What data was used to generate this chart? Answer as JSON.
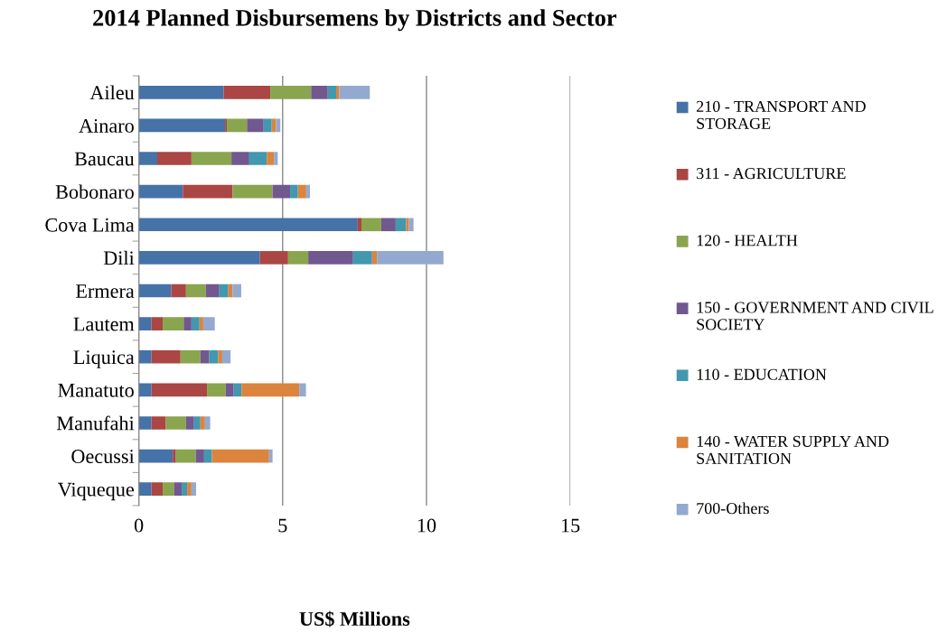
{
  "chart_data": {
    "type": "bar",
    "orientation": "horizontal",
    "stacked": true,
    "title": "2014 Planned Disbursemens by Districts and Sector",
    "xlabel": "US$ Millions",
    "categories": [
      "Aileu",
      "Ainaro",
      "Baucau",
      "Bobonaro",
      "Cova Lima",
      "Dili",
      "Ermera",
      "Lautem",
      "Liquica",
      "Manatuto",
      "Manufahi",
      "Oecussi",
      "Viqueque"
    ],
    "series": [
      {
        "name": "210 - TRANSPORT AND STORAGE",
        "color": "#4572a7",
        "values": [
          2.95,
          3.0,
          0.64,
          1.53,
          7.61,
          4.21,
          1.13,
          0.44,
          0.44,
          0.44,
          0.44,
          1.18,
          0.44
        ]
      },
      {
        "name": "311 - AGRICULTURE",
        "color": "#aa4643",
        "values": [
          1.62,
          0.06,
          1.19,
          1.73,
          0.13,
          0.98,
          0.51,
          0.39,
          1.01,
          1.93,
          0.5,
          0.11,
          0.39
        ]
      },
      {
        "name": "120 - HEALTH",
        "color": "#89a54e",
        "values": [
          1.42,
          0.7,
          1.39,
          1.39,
          0.69,
          0.7,
          0.69,
          0.73,
          0.69,
          0.65,
          0.7,
          0.69,
          0.39
        ]
      },
      {
        "name": "150 - GOVERNMENT AND CIVIL SOCIETY",
        "color": "#71588f",
        "values": [
          0.58,
          0.58,
          0.62,
          0.61,
          0.5,
          1.56,
          0.47,
          0.27,
          0.31,
          0.28,
          0.28,
          0.29,
          0.27
        ]
      },
      {
        "name": "110 - EDUCATION",
        "color": "#4198af",
        "values": [
          0.29,
          0.28,
          0.61,
          0.27,
          0.36,
          0.66,
          0.31,
          0.28,
          0.31,
          0.27,
          0.22,
          0.27,
          0.19
        ]
      },
      {
        "name": "140 - WATER SUPPLY AND SANITATION",
        "color": "#db843d",
        "values": [
          0.11,
          0.15,
          0.25,
          0.29,
          0.1,
          0.17,
          0.15,
          0.13,
          0.14,
          2.01,
          0.16,
          1.99,
          0.15
        ]
      },
      {
        "name": "700-Others",
        "color": "#93a9cf",
        "values": [
          1.06,
          0.15,
          0.13,
          0.13,
          0.16,
          2.31,
          0.3,
          0.4,
          0.29,
          0.23,
          0.18,
          0.12,
          0.16
        ]
      }
    ],
    "xlim": [
      0,
      15
    ],
    "xticks": [
      0,
      5,
      10,
      15
    ],
    "grid": "x",
    "legend": "right"
  }
}
